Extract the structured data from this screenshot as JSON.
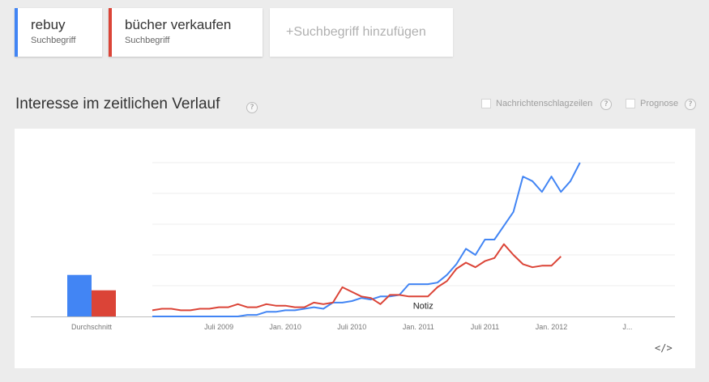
{
  "terms": [
    {
      "name": "rebuy",
      "type": "Suchbegriff",
      "color": "#4285f4"
    },
    {
      "name": "bücher verkaufen",
      "type": "Suchbegriff",
      "color": "#db4437"
    }
  ],
  "add_term_label": "+Suchbegriff hinzufügen",
  "section_title": "Interesse im zeitlichen Verlauf",
  "help_glyph": "?",
  "options": [
    {
      "label": "Nachrichtenschlagzeilen",
      "checked": false
    },
    {
      "label": "Prognose",
      "checked": false
    }
  ],
  "embed_label": "</>",
  "chart_data": {
    "type": "line",
    "title": "Interesse im zeitlichen Verlauf",
    "xlabel": "",
    "ylabel": "",
    "ylim": [
      0,
      100
    ],
    "grid": true,
    "y_gridlines": [
      20,
      40,
      60,
      80,
      100
    ],
    "x_range": [
      0,
      55
    ],
    "x_tick_positions": [
      7,
      14,
      21,
      28,
      35,
      42,
      50
    ],
    "x_tick_labels": [
      "Juli 2009",
      "Jan. 2010",
      "Juli 2010",
      "Jan. 2011",
      "Juli 2011",
      "Jan. 2012",
      "J..."
    ],
    "average_bar_label": "Durchschnitt",
    "average_values": [
      27,
      17
    ],
    "annotation": {
      "text": "Notiz",
      "x": 28.5,
      "y": 7
    },
    "series": [
      {
        "name": "rebuy",
        "color": "#4285f4",
        "values": [
          0,
          0,
          0,
          0,
          0,
          0,
          0,
          0,
          0,
          0,
          1,
          1,
          3,
          3,
          4,
          4,
          5,
          6,
          5,
          9,
          9,
          10,
          12,
          11,
          13,
          13,
          14,
          21,
          21,
          21,
          22,
          27,
          34,
          44,
          40,
          50,
          50,
          59,
          68,
          91,
          88,
          81,
          91,
          81,
          88,
          100
        ]
      },
      {
        "name": "bücher verkaufen",
        "color": "#db4437",
        "values": [
          4,
          5,
          5,
          4,
          4,
          5,
          5,
          6,
          6,
          8,
          6,
          6,
          8,
          7,
          7,
          6,
          6,
          9,
          8,
          9,
          19,
          16,
          13,
          12,
          8,
          14,
          14,
          13,
          13,
          13,
          19,
          23,
          31,
          35,
          32,
          36,
          38,
          47,
          40,
          34,
          32,
          33,
          33,
          39
        ]
      }
    ]
  }
}
